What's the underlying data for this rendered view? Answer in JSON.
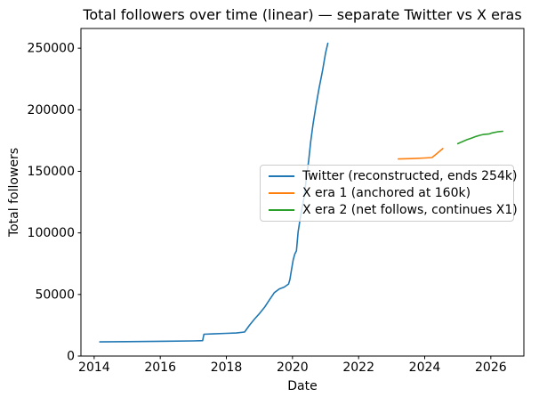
{
  "figure": {
    "background": "#ffffff",
    "text_color": "#000000"
  },
  "chart_data": {
    "type": "line",
    "title": "Total followers over time (linear) — separate Twitter vs X eras",
    "xlabel": "Date",
    "ylabel": "Total followers",
    "xlim": [
      2013.6,
      2027.0
    ],
    "ylim": [
      0,
      266000
    ],
    "xticks": [
      2014,
      2016,
      2018,
      2020,
      2022,
      2024,
      2026
    ],
    "yticks": [
      0,
      50000,
      100000,
      150000,
      200000,
      250000
    ],
    "grid": false,
    "legend": {
      "position": "inside-middle-right",
      "border_color": "#cccccc",
      "background": "rgba(255,255,255,0.8)"
    },
    "series": [
      {
        "key": "twitter",
        "name": "Twitter (reconstructed, ends 254k)",
        "color": "#1f77b4",
        "x": [
          2014.17,
          2015.0,
          2016.0,
          2017.0,
          2017.28,
          2017.32,
          2017.6,
          2018.0,
          2018.3,
          2018.55,
          2018.7,
          2018.85,
          2019.0,
          2019.15,
          2019.3,
          2019.45,
          2019.6,
          2019.75,
          2019.88,
          2019.92,
          2019.97,
          2020.02,
          2020.07,
          2020.12,
          2020.17,
          2020.26,
          2020.36,
          2020.42,
          2020.49,
          2020.55,
          2020.62,
          2020.71,
          2020.8,
          2020.91,
          2021.0,
          2021.07
        ],
        "y": [
          11500,
          11700,
          12000,
          12300,
          12500,
          17700,
          18000,
          18400,
          18700,
          19500,
          25000,
          30000,
          34500,
          39500,
          45500,
          51500,
          54500,
          56000,
          58500,
          62000,
          70000,
          78000,
          83000,
          85500,
          101000,
          116000,
          130000,
          145000,
          159000,
          174000,
          188000,
          203000,
          217000,
          232000,
          246000,
          254000
        ]
      },
      {
        "key": "x-era-1",
        "name": "X era 1 (anchored at 160k)",
        "color": "#ff7f0e",
        "x": [
          2023.2,
          2023.6,
          2024.0,
          2024.22,
          2024.35,
          2024.55
        ],
        "y": [
          160000,
          160300,
          160800,
          161200,
          164000,
          168500
        ]
      },
      {
        "key": "x-era-2",
        "name": "X era 2 (net follows, continues X1)",
        "color": "#2ca02c",
        "x": [
          2025.0,
          2025.15,
          2025.28,
          2025.42,
          2025.55,
          2025.68,
          2025.77,
          2025.96,
          2026.04,
          2026.2,
          2026.36
        ],
        "y": [
          172500,
          174200,
          175700,
          177000,
          178300,
          179300,
          179900,
          180400,
          181200,
          182100,
          182500
        ]
      }
    ]
  }
}
